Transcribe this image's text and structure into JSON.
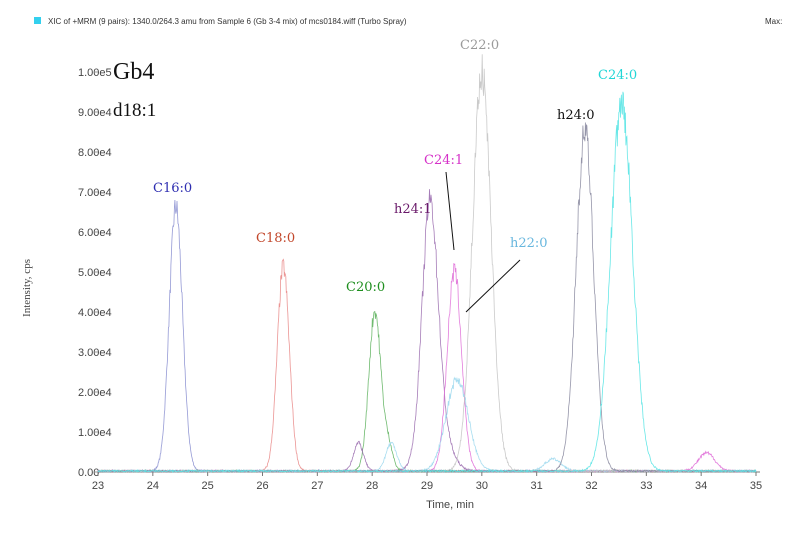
{
  "chart_data": {
    "type": "line",
    "header": "XIC of +MRM (9 pairs): 1340.0/264.3 amu from Sample 6 (Gb 3-4 mix) of mcs0184.wiff (Turbo Spray)",
    "header_right": "Max:",
    "title": "Gb4",
    "subtitle": "d18:1",
    "xlabel": "Time, min",
    "ylabel": "Intensity, cps",
    "xlim": [
      23,
      35
    ],
    "ylim": [
      0,
      100000
    ],
    "x_ticks": [
      "23",
      "24",
      "25",
      "26",
      "27",
      "28",
      "29",
      "30",
      "31",
      "32",
      "33",
      "34",
      "35"
    ],
    "y_ticks": [
      "0.00",
      "1.00e4",
      "2.00e4",
      "3.00e4",
      "4.00e4",
      "5.00e4",
      "6.00e4",
      "7.00e4",
      "8.00e4",
      "9.00e4",
      "1.00e5"
    ],
    "colors": {
      "C16:0": "#8a8fd0",
      "C18:0": "#e98a88",
      "C20:0": "#5fb25f",
      "h24:1": "#9c6fb0",
      "C24:1": "#e070d8",
      "h22:0": "#9fd9ee",
      "C22:0": "#c4c4c4",
      "h24:0": "#8a8aa0",
      "C24:0": "#58e4e4"
    },
    "series": [
      {
        "name": "C16:0",
        "label_color": "#2d2db0",
        "peaks": [
          {
            "x": 24.42,
            "h": 66000,
            "w": 0.12
          }
        ]
      },
      {
        "name": "C18:0",
        "label_color": "#c2462a",
        "peaks": [
          {
            "x": 26.38,
            "h": 51000,
            "w": 0.11
          }
        ]
      },
      {
        "name": "C20:0",
        "label_color": "#1f8f1f",
        "peaks": [
          {
            "x": 28.05,
            "h": 40000,
            "w": 0.11
          },
          {
            "x": 28.3,
            "h": 6000,
            "w": 0.08
          }
        ]
      },
      {
        "name": "h24:1",
        "label_color": "#6a1a6a",
        "peaks": [
          {
            "x": 29.05,
            "h": 55000,
            "w": 0.14
          },
          {
            "x": 27.75,
            "h": 7000,
            "w": 0.09
          },
          {
            "x": 29.15,
            "h": 14000,
            "w": 0.22
          }
        ]
      },
      {
        "name": "C24:1",
        "label_color": "#d531c8",
        "peaks": [
          {
            "x": 29.5,
            "h": 50000,
            "w": 0.13
          },
          {
            "x": 34.1,
            "h": 4500,
            "w": 0.15
          }
        ]
      },
      {
        "name": "h22:0",
        "label_color": "#68b7de",
        "peaks": [
          {
            "x": 29.55,
            "h": 23000,
            "w": 0.2
          },
          {
            "x": 28.35,
            "h": 7000,
            "w": 0.1
          },
          {
            "x": 31.3,
            "h": 3000,
            "w": 0.15
          }
        ]
      },
      {
        "name": "C22:0",
        "label_color": "#9a9a9a",
        "peaks": [
          {
            "x": 30.0,
            "h": 100000,
            "w": 0.17
          }
        ]
      },
      {
        "name": "h24:0",
        "label_color": "#111111",
        "peaks": [
          {
            "x": 31.88,
            "h": 85000,
            "w": 0.16
          }
        ]
      },
      {
        "name": "C24:0",
        "label_color": "#21d6d6",
        "peaks": [
          {
            "x": 32.55,
            "h": 92000,
            "w": 0.2
          }
        ]
      }
    ]
  }
}
